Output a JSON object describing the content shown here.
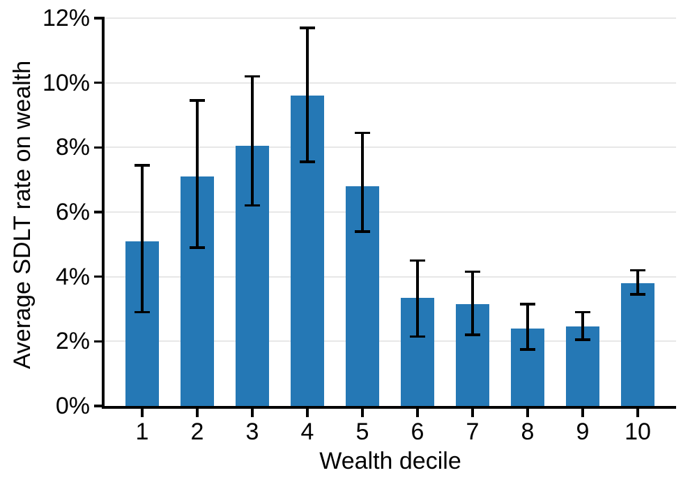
{
  "figure": {
    "background_color": "#ffffff",
    "text_color": "#000000"
  },
  "chart_data": {
    "type": "bar",
    "title": "",
    "xlabel": "Wealth decile",
    "ylabel": "Average SDLT rate on wealth",
    "categories": [
      "1",
      "2",
      "3",
      "4",
      "5",
      "6",
      "7",
      "8",
      "9",
      "10"
    ],
    "values": [
      5.1,
      7.1,
      8.05,
      9.6,
      6.8,
      3.35,
      3.15,
      2.4,
      2.45,
      3.8
    ],
    "error_low": [
      2.9,
      4.9,
      6.2,
      7.55,
      5.4,
      2.15,
      2.2,
      1.75,
      2.05,
      3.45
    ],
    "error_high": [
      7.45,
      9.45,
      10.2,
      11.7,
      8.45,
      4.5,
      4.15,
      3.15,
      2.9,
      4.2
    ],
    "value_unit": "%",
    "ylim": [
      0,
      12
    ],
    "ytick_step": 2,
    "ytick_labels": [
      "0%",
      "2%",
      "4%",
      "6%",
      "8%",
      "10%",
      "12%"
    ],
    "grid": "horizontal-major",
    "legend": null,
    "bar_color": "#2578b5",
    "error_bar_color": "#000000",
    "gridline_color": "#e7e7e7"
  }
}
